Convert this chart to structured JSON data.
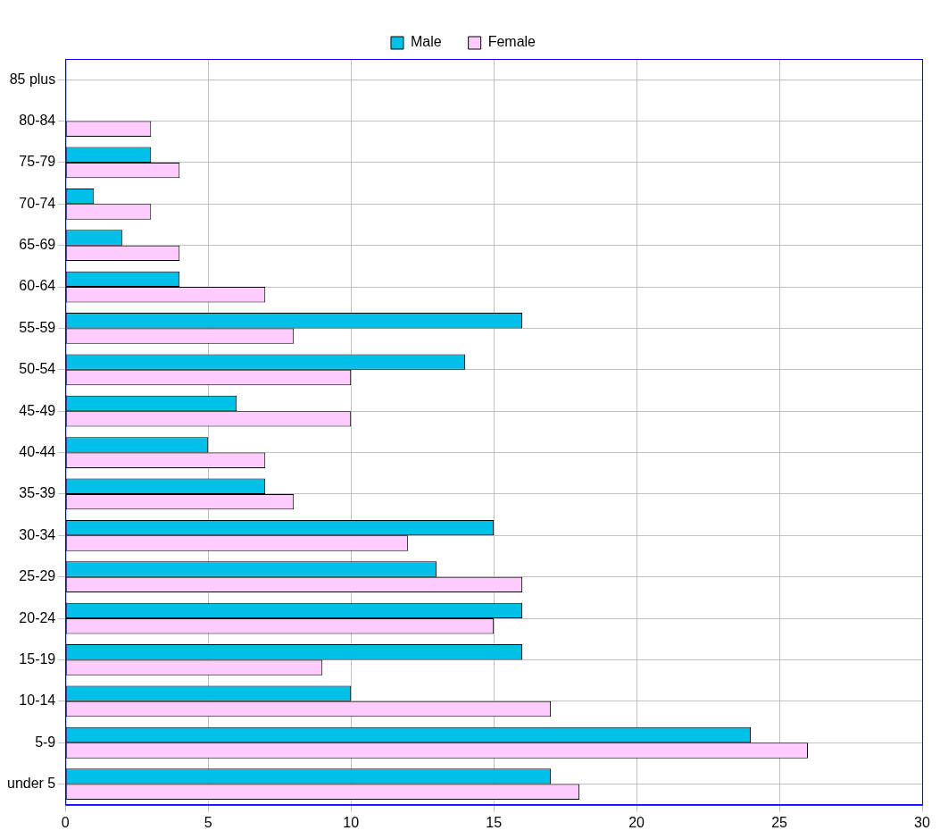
{
  "chart_data": {
    "type": "bar",
    "orientation": "horizontal",
    "categories": [
      "85 plus",
      "80-84",
      "75-79",
      "70-74",
      "65-69",
      "60-64",
      "55-59",
      "50-54",
      "45-49",
      "40-44",
      "35-39",
      "30-34",
      "25-29",
      "20-24",
      "15-19",
      "10-14",
      "5-9",
      "under 5"
    ],
    "series": [
      {
        "name": "Male",
        "color": "#00c0e8",
        "values": [
          0,
          0,
          3,
          1,
          2,
          4,
          16,
          14,
          6,
          5,
          7,
          15,
          13,
          16,
          16,
          10,
          24,
          17
        ]
      },
      {
        "name": "Female",
        "color": "#ffccff",
        "values": [
          0,
          3,
          4,
          3,
          4,
          7,
          8,
          10,
          10,
          7,
          8,
          12,
          16,
          15,
          9,
          17,
          26,
          18
        ]
      }
    ],
    "xlim": [
      0,
      30
    ],
    "xticks": [
      0,
      5,
      10,
      15,
      20,
      25,
      30
    ],
    "grid": true,
    "legend": "top"
  }
}
